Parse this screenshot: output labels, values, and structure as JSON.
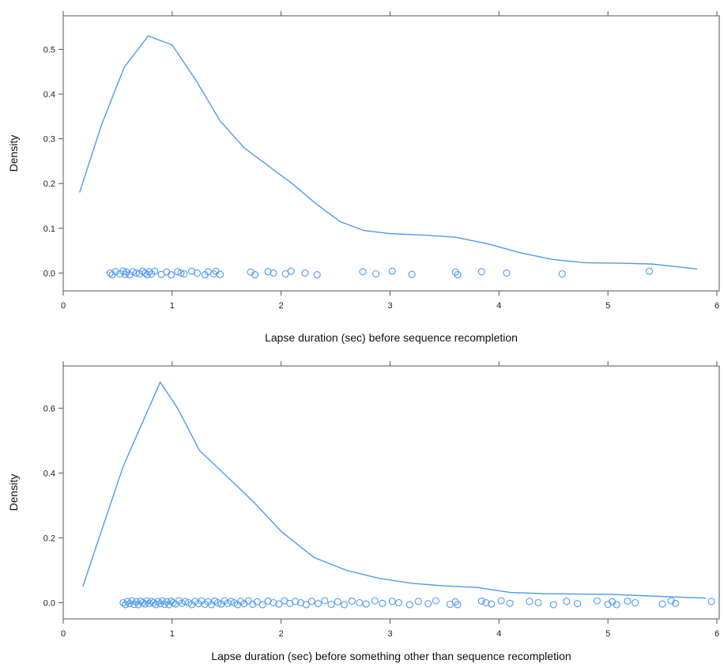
{
  "colors": {
    "series": "#4f9aef",
    "frame": "#555555"
  },
  "chart_data": [
    {
      "type": "line",
      "xlabel": "Lapse duration (sec) before sequence recompletion",
      "ylabel": "Density",
      "xlim": [
        0,
        6
      ],
      "ylim": [
        -0.04,
        0.575
      ],
      "x_ticks": [
        "0",
        "1",
        "2",
        "3",
        "4",
        "5",
        "6"
      ],
      "y_ticks": [
        "0.0",
        "0.1",
        "0.2",
        "0.3",
        "0.4",
        "0.5"
      ],
      "grid": false,
      "density_curve": {
        "x": [
          0.15,
          0.35,
          0.56,
          0.78,
          1.0,
          1.22,
          1.44,
          1.66,
          1.88,
          2.1,
          2.32,
          2.54,
          2.76,
          3.0,
          3.3,
          3.6,
          3.9,
          4.2,
          4.5,
          4.8,
          5.1,
          5.4,
          5.6,
          5.82
        ],
        "y": [
          0.18,
          0.33,
          0.46,
          0.53,
          0.51,
          0.43,
          0.34,
          0.28,
          0.24,
          0.2,
          0.155,
          0.115,
          0.095,
          0.088,
          0.085,
          0.08,
          0.065,
          0.045,
          0.03,
          0.023,
          0.022,
          0.02,
          0.015,
          0.009
        ]
      },
      "rug_points": [
        0.43,
        0.45,
        0.48,
        0.52,
        0.55,
        0.57,
        0.58,
        0.61,
        0.64,
        0.67,
        0.7,
        0.73,
        0.75,
        0.77,
        0.79,
        0.81,
        0.84,
        0.9,
        0.95,
        0.99,
        1.05,
        1.08,
        1.11,
        1.18,
        1.23,
        1.3,
        1.33,
        1.38,
        1.4,
        1.44,
        1.72,
        1.76,
        1.88,
        1.93,
        2.04,
        2.09,
        2.22,
        2.33,
        2.75,
        2.87,
        3.02,
        3.2,
        3.6,
        3.62,
        3.84,
        4.07,
        4.58,
        5.38
      ],
      "point_jitter": [
        0.0,
        -0.004,
        0.003,
        -0.002,
        0.004,
        -0.003,
        0.002,
        -0.004,
        0.003,
        0.0,
        -0.002,
        0.004
      ]
    },
    {
      "type": "line",
      "xlabel": "Lapse duration (sec) before something other than sequence recompletion",
      "ylabel": "Density",
      "xlim": [
        0,
        6
      ],
      "ylim": [
        -0.05,
        0.73
      ],
      "x_ticks": [
        "0",
        "1",
        "2",
        "3",
        "4",
        "5",
        "6"
      ],
      "y_ticks": [
        "0.0",
        "0.2",
        "0.4",
        "0.6"
      ],
      "grid": false,
      "density_curve": {
        "x": [
          0.18,
          0.35,
          0.55,
          0.72,
          0.89,
          1.05,
          1.25,
          1.5,
          1.75,
          2.0,
          2.3,
          2.6,
          2.9,
          3.2,
          3.5,
          3.8,
          4.1,
          4.4,
          4.7,
          5.0,
          5.3,
          5.6,
          5.9
        ],
        "y": [
          0.05,
          0.22,
          0.42,
          0.55,
          0.68,
          0.6,
          0.47,
          0.39,
          0.31,
          0.22,
          0.14,
          0.1,
          0.075,
          0.06,
          0.052,
          0.047,
          0.032,
          0.028,
          0.027,
          0.026,
          0.022,
          0.018,
          0.014
        ]
      },
      "rug_points": [
        0.55,
        0.57,
        0.59,
        0.61,
        0.63,
        0.65,
        0.67,
        0.69,
        0.71,
        0.73,
        0.75,
        0.77,
        0.79,
        0.81,
        0.83,
        0.85,
        0.87,
        0.89,
        0.91,
        0.93,
        0.95,
        0.97,
        0.99,
        1.01,
        1.03,
        1.06,
        1.09,
        1.12,
        1.15,
        1.18,
        1.21,
        1.24,
        1.27,
        1.3,
        1.33,
        1.36,
        1.39,
        1.42,
        1.45,
        1.48,
        1.51,
        1.54,
        1.57,
        1.6,
        1.63,
        1.66,
        1.7,
        1.74,
        1.78,
        1.83,
        1.88,
        1.93,
        1.98,
        2.03,
        2.08,
        2.13,
        2.18,
        2.23,
        2.28,
        2.34,
        2.4,
        2.46,
        2.52,
        2.58,
        2.65,
        2.72,
        2.78,
        2.86,
        2.93,
        3.02,
        3.08,
        3.18,
        3.26,
        3.35,
        3.42,
        3.55,
        3.6,
        3.62,
        3.84,
        3.88,
        3.93,
        4.02,
        4.1,
        4.28,
        4.36,
        4.5,
        4.62,
        4.72,
        4.9,
        5.0,
        5.04,
        5.08,
        5.18,
        5.25,
        5.5,
        5.58,
        5.62,
        5.95
      ],
      "point_jitter": [
        0.0,
        -0.006,
        0.004,
        -0.003,
        0.006,
        -0.005,
        0.003,
        -0.006,
        0.005,
        0.0,
        -0.004,
        0.006,
        -0.002,
        0.004
      ]
    }
  ]
}
